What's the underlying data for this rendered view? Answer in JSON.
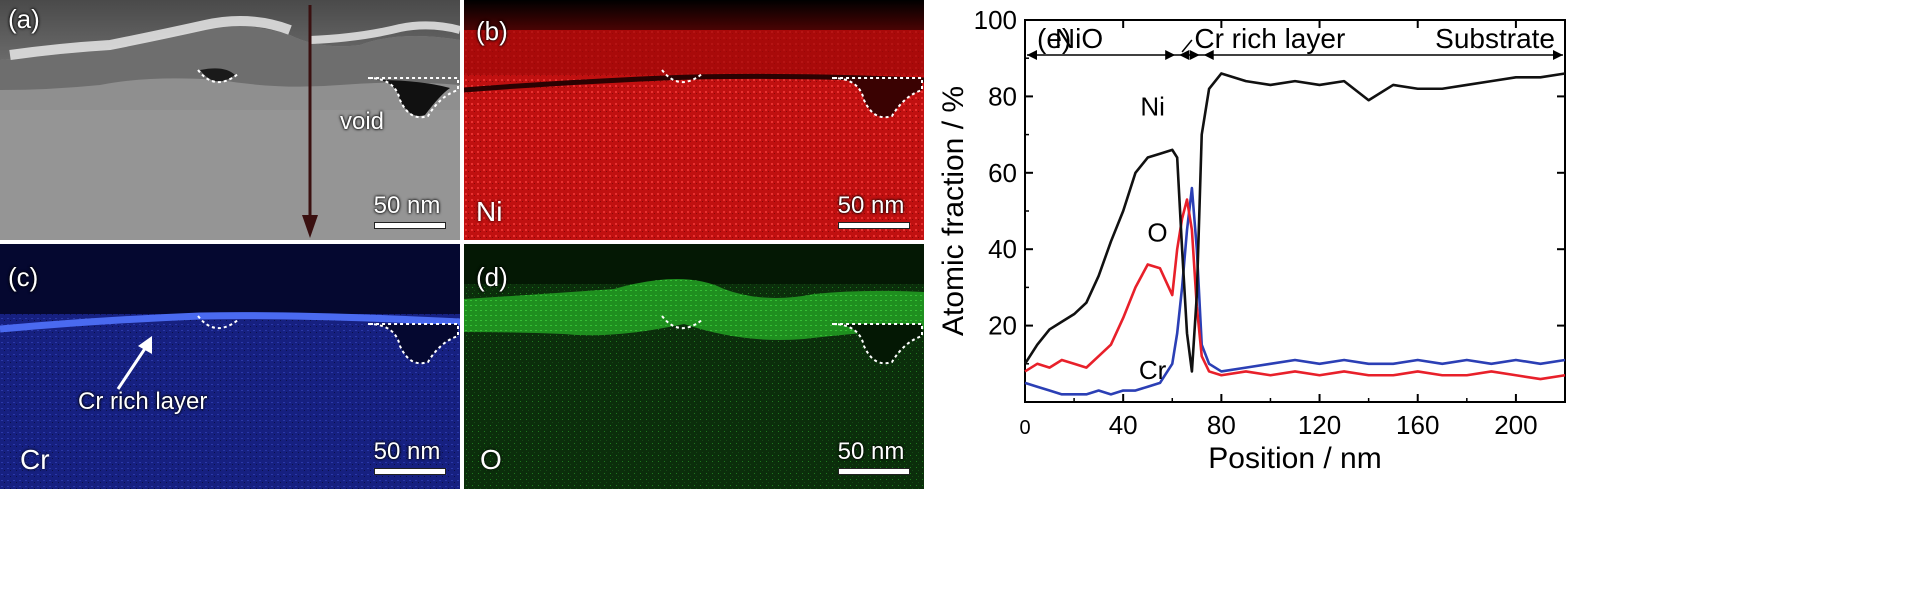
{
  "panels": {
    "a": {
      "label": "(a)",
      "scale": "50 nm",
      "annotation": "void"
    },
    "b": {
      "label": "(b)",
      "element": "Ni",
      "scale": "50 nm"
    },
    "c": {
      "label": "(c)",
      "element": "Cr",
      "scale": "50 nm",
      "annotation": "Cr rich layer"
    },
    "d": {
      "label": "(d)",
      "element": "O",
      "scale": "50 nm"
    }
  },
  "colors": {
    "ni": "#111111",
    "o": "#e8202a",
    "cr": "#2b3fb5",
    "tem_bg": "#8e8e8e",
    "map_ni": "#d01010",
    "map_cr": "#1a2590",
    "map_o": "#1a7a1a"
  },
  "chart_data": {
    "type": "line",
    "panel_label": "(e)",
    "xlabel": "Position / nm",
    "ylabel": "Atomic fraction / %",
    "xlim": [
      0,
      220
    ],
    "ylim": [
      0,
      100
    ],
    "xticks": [
      0,
      40,
      80,
      120,
      160,
      200
    ],
    "yticks": [
      20,
      40,
      60,
      80,
      100
    ],
    "regions": [
      {
        "label": "NiO",
        "from": 0,
        "to": 62
      },
      {
        "label": "Cr rich layer",
        "from": 62,
        "to": 72
      },
      {
        "label": "Substrate",
        "from": 72,
        "to": 220
      }
    ],
    "series": [
      {
        "name": "Ni",
        "color": "#111111",
        "x": [
          0,
          5,
          10,
          15,
          20,
          25,
          30,
          35,
          40,
          45,
          50,
          55,
          60,
          62,
          64,
          66,
          68,
          70,
          72,
          75,
          80,
          90,
          100,
          110,
          120,
          130,
          140,
          150,
          160,
          170,
          180,
          190,
          200,
          210,
          220
        ],
        "y": [
          10,
          15,
          19,
          21,
          23,
          26,
          33,
          42,
          50,
          60,
          64,
          65,
          66,
          64,
          40,
          18,
          8,
          28,
          70,
          82,
          86,
          84,
          83,
          84,
          83,
          84,
          79,
          83,
          82,
          82,
          83,
          84,
          85,
          85,
          86
        ]
      },
      {
        "name": "O",
        "color": "#e8202a",
        "x": [
          0,
          5,
          10,
          15,
          20,
          25,
          30,
          35,
          40,
          45,
          50,
          55,
          60,
          62,
          64,
          66,
          68,
          70,
          72,
          75,
          80,
          90,
          100,
          110,
          120,
          130,
          140,
          150,
          160,
          170,
          180,
          190,
          200,
          210,
          220
        ],
        "y": [
          8,
          10,
          9,
          11,
          10,
          9,
          12,
          15,
          22,
          30,
          36,
          35,
          28,
          40,
          48,
          53,
          45,
          25,
          12,
          8,
          7,
          8,
          7,
          8,
          7,
          8,
          7,
          7,
          8,
          7,
          7,
          8,
          7,
          6,
          7
        ]
      },
      {
        "name": "Cr",
        "color": "#2b3fb5",
        "x": [
          0,
          5,
          10,
          15,
          20,
          25,
          30,
          35,
          40,
          45,
          50,
          55,
          60,
          62,
          64,
          66,
          68,
          70,
          72,
          75,
          80,
          90,
          100,
          110,
          120,
          130,
          140,
          150,
          160,
          170,
          180,
          190,
          200,
          210,
          220
        ],
        "y": [
          5,
          4,
          3,
          2,
          2,
          2,
          3,
          2,
          3,
          3,
          4,
          5,
          10,
          18,
          30,
          45,
          56,
          40,
          15,
          10,
          8,
          9,
          10,
          11,
          10,
          11,
          10,
          10,
          11,
          10,
          11,
          10,
          11,
          10,
          11
        ]
      }
    ],
    "curve_labels": [
      {
        "name": "Ni",
        "x": 52,
        "y": 75
      },
      {
        "name": "O",
        "x": 54,
        "y": 42
      },
      {
        "name": "Cr",
        "x": 52,
        "y": 6
      }
    ]
  }
}
